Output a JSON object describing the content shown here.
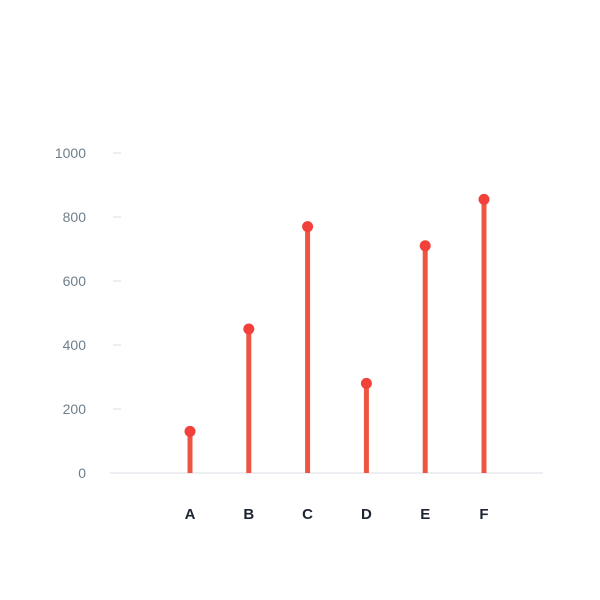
{
  "chart_data": {
    "type": "lollipop",
    "categories": [
      "A",
      "B",
      "C",
      "D",
      "E",
      "F"
    ],
    "values": [
      130,
      450,
      770,
      280,
      710,
      855
    ],
    "ylim": [
      0,
      1000
    ],
    "y_ticks": [
      0,
      200,
      400,
      600,
      800,
      1000
    ],
    "grid": false,
    "colors": {
      "stem": "#ee5541",
      "dot": "#f2403a",
      "axis": "#d9dde3",
      "tick_mark": "#d9dde3"
    }
  }
}
